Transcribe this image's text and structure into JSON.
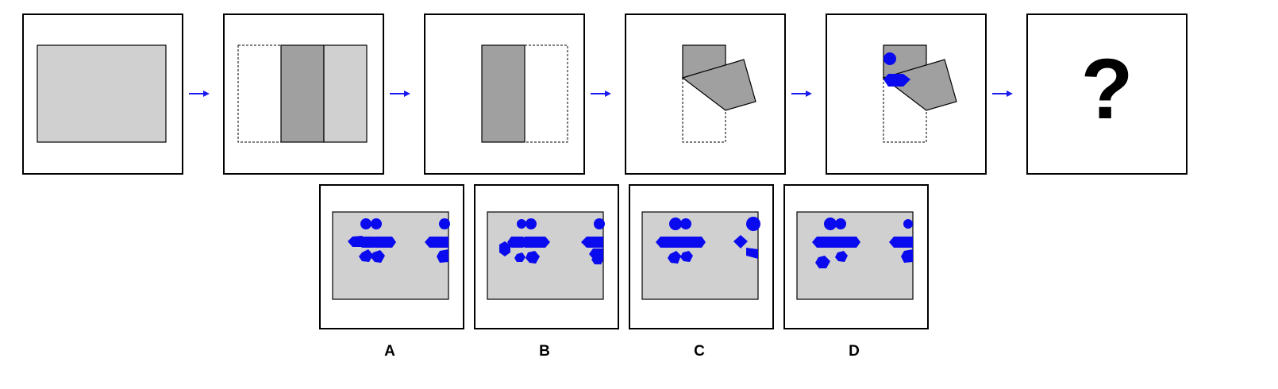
{
  "question_mark": "?",
  "options": [
    {
      "letter": "A"
    },
    {
      "letter": "B"
    },
    {
      "letter": "C"
    },
    {
      "letter": "D"
    }
  ],
  "colors": {
    "light_gray": "#d0d0d0",
    "dark_gray": "#a0a0a0",
    "blue": "#0a0aef",
    "arrow_blue": "#1b1bf0"
  }
}
